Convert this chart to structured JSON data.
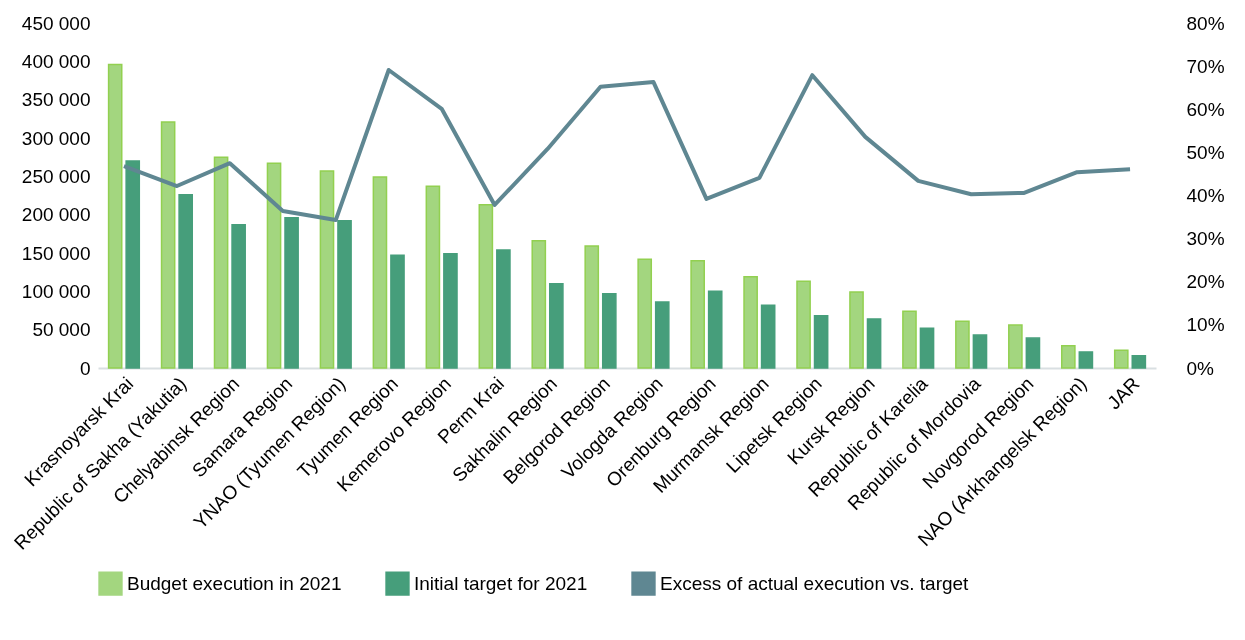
{
  "chart_data": {
    "type": "bar",
    "categories": [
      "Krasnoyarsk Krai",
      "Republic of Sakha (Yakutia)",
      "Chelyabinsk Region",
      "Samara Region",
      "YNAO (Tyumen Region)",
      "Tyumen Region",
      "Kemerovo Region",
      "Perm Krai",
      "Sakhalin Region",
      "Belgorod Region",
      "Vologda Region",
      "Orenburg Region",
      "Murmansk Region",
      "Lipetsk Region",
      "Kursk Region",
      "Republic of Karelia",
      "Republic of Mordovia",
      "Novgorod Region",
      "NAO (Arkhangelsk Region)",
      "JAR"
    ],
    "series": [
      {
        "name": "Budget execution in 2021",
        "color": "#a3d67f",
        "values": [
          396000,
          321000,
          275000,
          267000,
          257000,
          249000,
          237000,
          213000,
          166000,
          159000,
          142000,
          140000,
          119000,
          113000,
          99000,
          74000,
          61000,
          56000,
          29000,
          23000
        ]
      },
      {
        "name": "Initial target for 2021",
        "color": "#469e7b",
        "values": [
          270000,
          226000,
          187000,
          196000,
          192000,
          147000,
          149000,
          154000,
          110000,
          97000,
          86000,
          100000,
          82000,
          68000,
          64000,
          52000,
          43000,
          39000,
          21000,
          16000
        ]
      },
      {
        "name": "Excess of actual execution vs. target",
        "type": "line",
        "axis": "y2",
        "color": "#5f8792",
        "values": [
          46.8,
          42.2,
          47.5,
          36.4,
          34.3,
          69.1,
          60.1,
          37.8,
          50.8,
          65.2,
          66.3,
          39.2,
          44.1,
          67.9,
          53.6,
          43.4,
          40.3,
          40.6,
          45.4,
          46.1
        ]
      }
    ],
    "ylim": [
      0,
      450000
    ],
    "yticks": [
      {
        "value": 0,
        "label": "0"
      },
      {
        "value": 50000,
        "label": "50 000"
      },
      {
        "value": 100000,
        "label": "100 000"
      },
      {
        "value": 150000,
        "label": "150 000"
      },
      {
        "value": 200000,
        "label": "200 000"
      },
      {
        "value": 250000,
        "label": "250 000"
      },
      {
        "value": 300000,
        "label": "300 000"
      },
      {
        "value": 350000,
        "label": "350 000"
      },
      {
        "value": 400000,
        "label": "400 000"
      },
      {
        "value": 450000,
        "label": "450 000"
      }
    ],
    "y2lim": [
      0,
      80
    ],
    "y2ticks": [
      {
        "value": 0,
        "label": "0%"
      },
      {
        "value": 10,
        "label": "10%"
      },
      {
        "value": 20,
        "label": "20%"
      },
      {
        "value": 30,
        "label": "30%"
      },
      {
        "value": 40,
        "label": "40%"
      },
      {
        "value": 50,
        "label": "50%"
      },
      {
        "value": 60,
        "label": "60%"
      },
      {
        "value": 70,
        "label": "70%"
      },
      {
        "value": 80,
        "label": "80%"
      }
    ],
    "grid": false,
    "legend": "bottom"
  }
}
